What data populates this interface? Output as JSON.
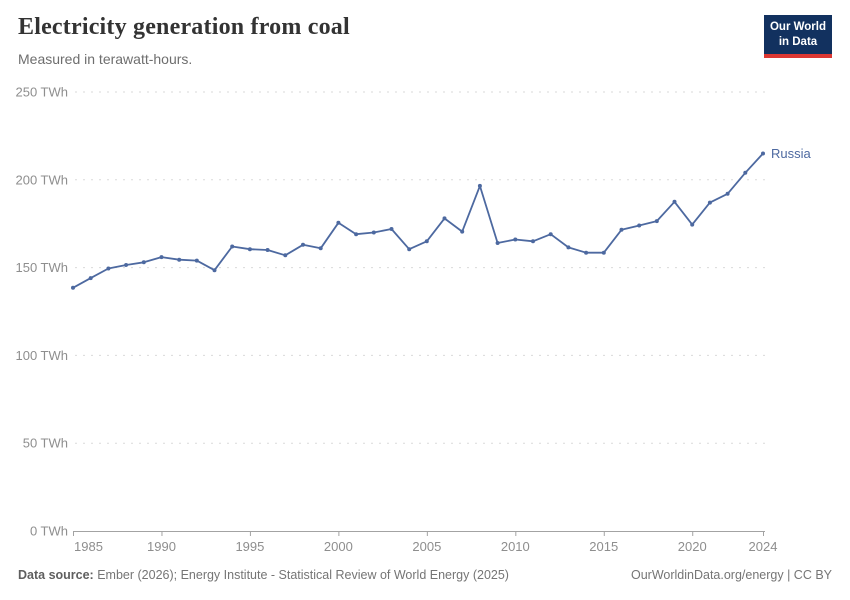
{
  "header": {
    "title": "Electricity generation from coal",
    "subtitle": "Measured in terawatt-hours."
  },
  "logo": {
    "line1": "Our World",
    "line2": "in Data"
  },
  "chart_data": {
    "type": "line",
    "title": "Electricity generation from coal",
    "unit": "TWh",
    "xlabel": "",
    "ylabel": "",
    "xlim": [
      1985,
      2024
    ],
    "ylim": [
      0,
      250
    ],
    "grid": "horizontal-dashed",
    "legend_position": "end-of-line-label",
    "series": [
      {
        "name": "Russia",
        "color": "#4d69a0",
        "x": [
          1985,
          1986,
          1987,
          1988,
          1989,
          1990,
          1991,
          1992,
          1993,
          1994,
          1995,
          1996,
          1997,
          1998,
          1999,
          2000,
          2001,
          2002,
          2003,
          2004,
          2005,
          2006,
          2007,
          2008,
          2009,
          2010,
          2011,
          2012,
          2013,
          2014,
          2015,
          2016,
          2017,
          2018,
          2019,
          2020,
          2021,
          2022,
          2023,
          2024
        ],
        "values": [
          138.5,
          144,
          149.5,
          151.5,
          153,
          156,
          154.5,
          154,
          148.5,
          162,
          160.5,
          160,
          157,
          163,
          161,
          175.5,
          169,
          170,
          172,
          160.5,
          165,
          178,
          170.5,
          196.5,
          164,
          166,
          165,
          169,
          161.5,
          158.5,
          158.5,
          171.5,
          174,
          176.5,
          187.5,
          174.5,
          187,
          192,
          204,
          215
        ]
      }
    ],
    "yticks": [
      {
        "value": 0,
        "label": "0 TWh"
      },
      {
        "value": 50,
        "label": "50 TWh"
      },
      {
        "value": 100,
        "label": "100 TWh"
      },
      {
        "value": 150,
        "label": "150 TWh"
      },
      {
        "value": 200,
        "label": "200 TWh"
      },
      {
        "value": 250,
        "label": "250 TWh"
      }
    ],
    "xticks": [
      {
        "value": 1985,
        "label": "1985"
      },
      {
        "value": 1990,
        "label": "1990"
      },
      {
        "value": 1995,
        "label": "1995"
      },
      {
        "value": 2000,
        "label": "2000"
      },
      {
        "value": 2005,
        "label": "2005"
      },
      {
        "value": 2010,
        "label": "2010"
      },
      {
        "value": 2015,
        "label": "2015"
      },
      {
        "value": 2020,
        "label": "2020"
      },
      {
        "value": 2024,
        "label": "2024"
      }
    ]
  },
  "footer": {
    "source_label": "Data source:",
    "source_text": " Ember (2026); Energy Institute - Statistical Review of World Energy (2025)",
    "credit": "OurWorldinData.org/energy | CC BY"
  },
  "colors": {
    "line": "#4d69a0",
    "grid": "#dadada",
    "axis": "#a3a3a3",
    "tick_label": "#8e8e8e",
    "logo_bg": "#12315f",
    "logo_red": "#dc3732"
  }
}
